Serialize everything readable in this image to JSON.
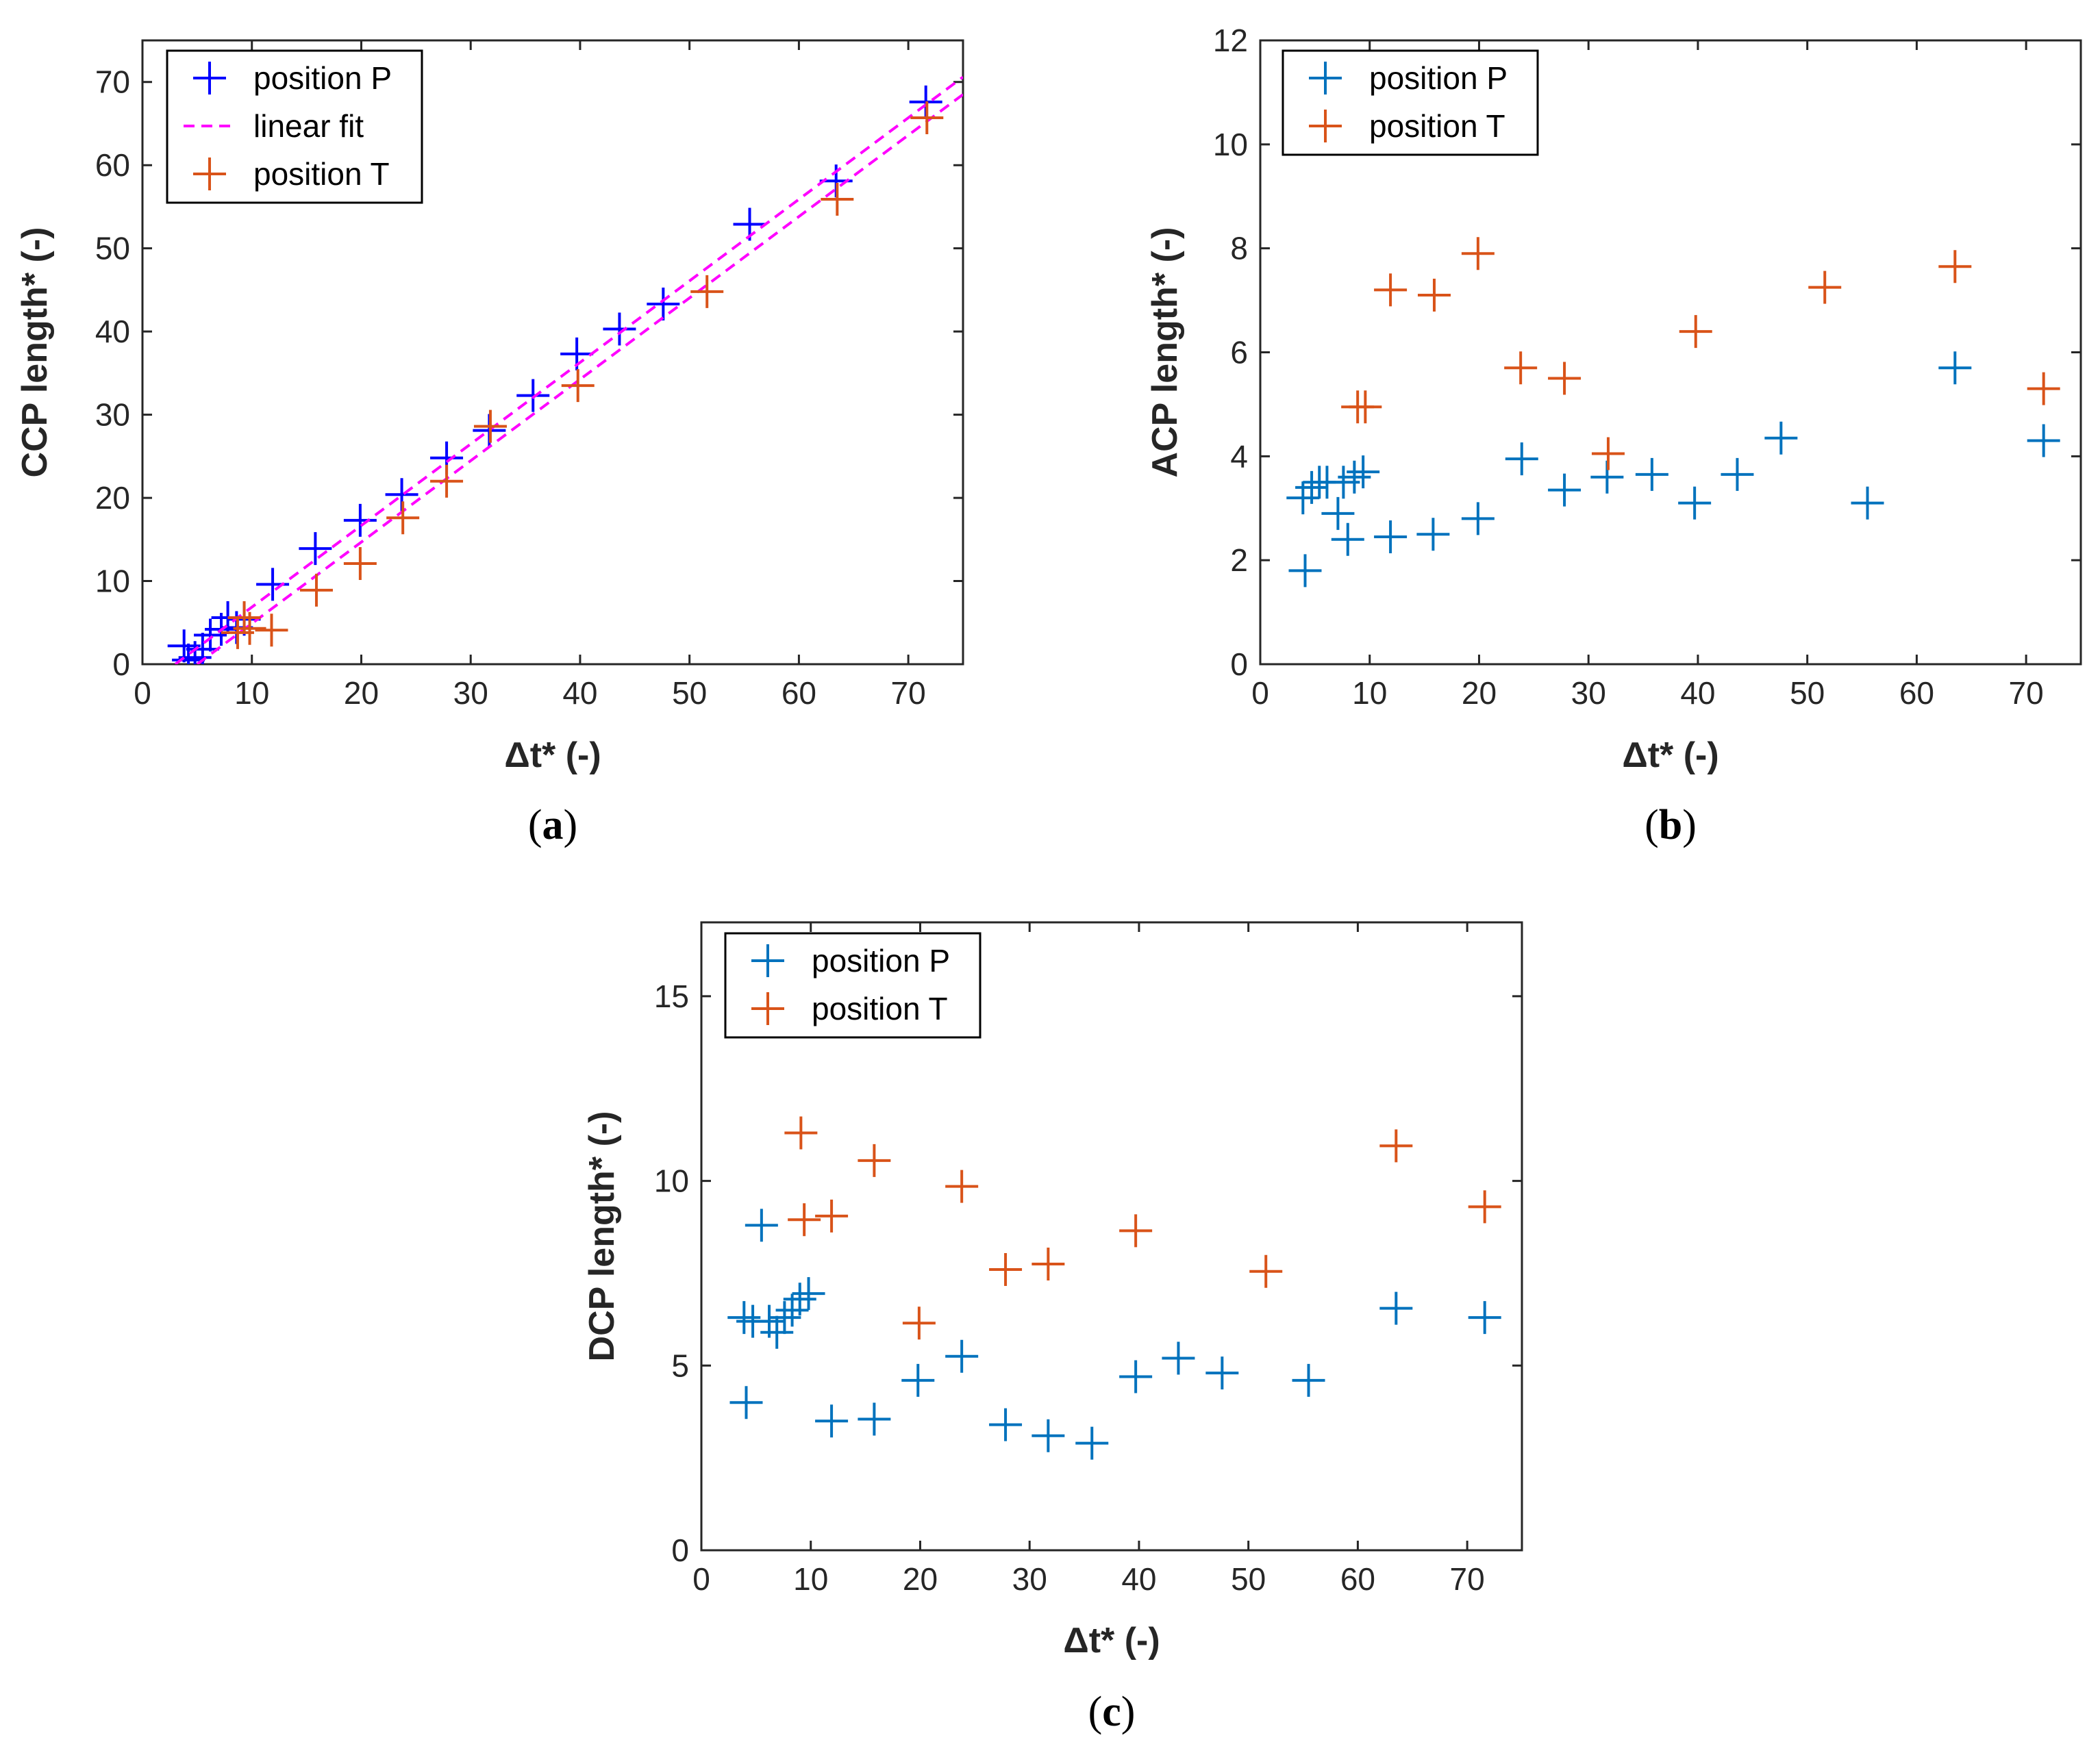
{
  "colors": {
    "blue_dark": "#0000ff",
    "blue": "#0072bd",
    "orange": "#d95319",
    "magenta": "#ff00ff",
    "axis": "#262626"
  },
  "chart_data": [
    {
      "panel": "(a)",
      "panel_letter": "a",
      "type": "scatter",
      "xlabel": "Δt* (-)",
      "ylabel": "CCP length* (-)",
      "xlim": [
        0,
        75
      ],
      "ylim": [
        0,
        75
      ],
      "xticks": [
        0,
        10,
        20,
        30,
        40,
        50,
        60,
        70
      ],
      "yticks": [
        0,
        10,
        20,
        30,
        40,
        50,
        60,
        70
      ],
      "legend_position": "top-left",
      "series": [
        {
          "name": "position P",
          "color": "#0000ff",
          "marker": "plus",
          "points": [
            [
              3.8,
              2.2
            ],
            [
              4.2,
              0.5
            ],
            [
              4.8,
              0.8
            ],
            [
              5.5,
              1.8
            ],
            [
              6.2,
              3.5
            ],
            [
              7.2,
              4.2
            ],
            [
              7.8,
              5.6
            ],
            [
              8.6,
              4.4
            ],
            [
              9.3,
              5.4
            ],
            [
              11.9,
              9.6
            ],
            [
              15.8,
              13.9
            ],
            [
              19.9,
              17.3
            ],
            [
              23.7,
              20.4
            ],
            [
              27.8,
              24.8
            ],
            [
              31.7,
              28.1
            ],
            [
              35.7,
              32.3
            ],
            [
              39.7,
              37.3
            ],
            [
              43.6,
              40.3
            ],
            [
              47.6,
              43.3
            ],
            [
              55.5,
              52.9
            ],
            [
              63.4,
              58.1
            ],
            [
              71.6,
              67.6
            ]
          ]
        },
        {
          "name": "linear fit",
          "color": "#ff00ff",
          "style": "dashed",
          "lines": [
            [
              [
                3,
                0
              ],
              [
                75,
                70.6
              ]
            ],
            [
              [
                5,
                0
              ],
              [
                75,
                68.5
              ]
            ]
          ]
        },
        {
          "name": "position T",
          "color": "#d95319",
          "marker": "plus",
          "points": [
            [
              8.7,
              3.8
            ],
            [
              9.3,
              5.6
            ],
            [
              9.8,
              4.3
            ],
            [
              11.8,
              4.1
            ],
            [
              15.9,
              8.9
            ],
            [
              19.9,
              12.1
            ],
            [
              23.8,
              17.6
            ],
            [
              27.8,
              22.0
            ],
            [
              31.8,
              28.6
            ],
            [
              39.8,
              33.5
            ],
            [
              51.6,
              44.8
            ],
            [
              63.5,
              55.9
            ],
            [
              71.7,
              65.7
            ]
          ]
        }
      ]
    },
    {
      "panel": "(b)",
      "panel_letter": "b",
      "type": "scatter",
      "xlabel": "Δt* (-)",
      "ylabel": "ACP length* (-)",
      "xlim": [
        0,
        75
      ],
      "ylim": [
        0,
        12
      ],
      "xticks": [
        0,
        10,
        20,
        30,
        40,
        50,
        60,
        70
      ],
      "yticks": [
        0,
        2,
        4,
        6,
        8,
        10,
        12
      ],
      "legend_position": "top-left",
      "series": [
        {
          "name": "position P",
          "color": "#0072bd",
          "marker": "plus",
          "points": [
            [
              3.9,
              3.2
            ],
            [
              4.1,
              1.8
            ],
            [
              4.7,
              3.4
            ],
            [
              5.4,
              3.5
            ],
            [
              6.1,
              3.5
            ],
            [
              7.1,
              2.9
            ],
            [
              7.6,
              3.5
            ],
            [
              8.0,
              2.4
            ],
            [
              8.6,
              3.6
            ],
            [
              9.4,
              3.7
            ],
            [
              11.9,
              2.45
            ],
            [
              15.8,
              2.5
            ],
            [
              19.9,
              2.8
            ],
            [
              23.9,
              3.95
            ],
            [
              27.8,
              3.35
            ],
            [
              31.7,
              3.6
            ],
            [
              35.8,
              3.65
            ],
            [
              39.7,
              3.1
            ],
            [
              43.6,
              3.65
            ],
            [
              47.6,
              4.35
            ],
            [
              55.5,
              3.1
            ],
            [
              63.5,
              5.7
            ],
            [
              71.6,
              4.3
            ]
          ]
        },
        {
          "name": "position T",
          "color": "#d95319",
          "marker": "plus",
          "points": [
            [
              8.9,
              4.95
            ],
            [
              9.6,
              4.95
            ],
            [
              11.9,
              7.2
            ],
            [
              15.9,
              7.1
            ],
            [
              19.9,
              7.9
            ],
            [
              23.8,
              5.7
            ],
            [
              27.8,
              5.5
            ],
            [
              31.8,
              4.05
            ],
            [
              39.8,
              6.4
            ],
            [
              51.6,
              7.25
            ],
            [
              63.5,
              7.65
            ],
            [
              71.6,
              5.3
            ]
          ]
        }
      ]
    },
    {
      "panel": "(c)",
      "panel_letter": "c",
      "type": "scatter",
      "xlabel": "Δt* (-)",
      "ylabel": "DCP length* (-)",
      "xlim": [
        0,
        75
      ],
      "ylim": [
        0,
        17
      ],
      "xticks": [
        0,
        10,
        20,
        30,
        40,
        50,
        60,
        70
      ],
      "yticks": [
        0,
        5,
        10,
        15
      ],
      "legend_position": "top-left",
      "series": [
        {
          "name": "position P",
          "color": "#0072bd",
          "marker": "plus",
          "points": [
            [
              3.9,
              6.3
            ],
            [
              4.1,
              4.0
            ],
            [
              4.7,
              6.2
            ],
            [
              5.5,
              8.8
            ],
            [
              6.2,
              6.2
            ],
            [
              6.9,
              5.9
            ],
            [
              7.6,
              6.3
            ],
            [
              8.3,
              6.5
            ],
            [
              9.0,
              6.8
            ],
            [
              9.8,
              6.95
            ],
            [
              11.9,
              3.5
            ],
            [
              15.8,
              3.55
            ],
            [
              19.8,
              4.6
            ],
            [
              23.8,
              5.25
            ],
            [
              27.8,
              3.4
            ],
            [
              31.7,
              3.1
            ],
            [
              35.7,
              2.9
            ],
            [
              39.7,
              4.7
            ],
            [
              43.6,
              5.2
            ],
            [
              47.6,
              4.8
            ],
            [
              55.5,
              4.6
            ],
            [
              63.5,
              6.55
            ],
            [
              71.6,
              6.3
            ]
          ]
        },
        {
          "name": "position T",
          "color": "#d95319",
          "marker": "plus",
          "points": [
            [
              9.1,
              11.3
            ],
            [
              9.4,
              8.95
            ],
            [
              11.9,
              9.05
            ],
            [
              15.8,
              10.55
            ],
            [
              19.9,
              6.15
            ],
            [
              23.8,
              9.85
            ],
            [
              27.8,
              7.6
            ],
            [
              31.7,
              7.75
            ],
            [
              39.7,
              8.65
            ],
            [
              51.6,
              7.55
            ],
            [
              63.5,
              10.95
            ],
            [
              71.6,
              9.3
            ]
          ]
        }
      ]
    }
  ]
}
